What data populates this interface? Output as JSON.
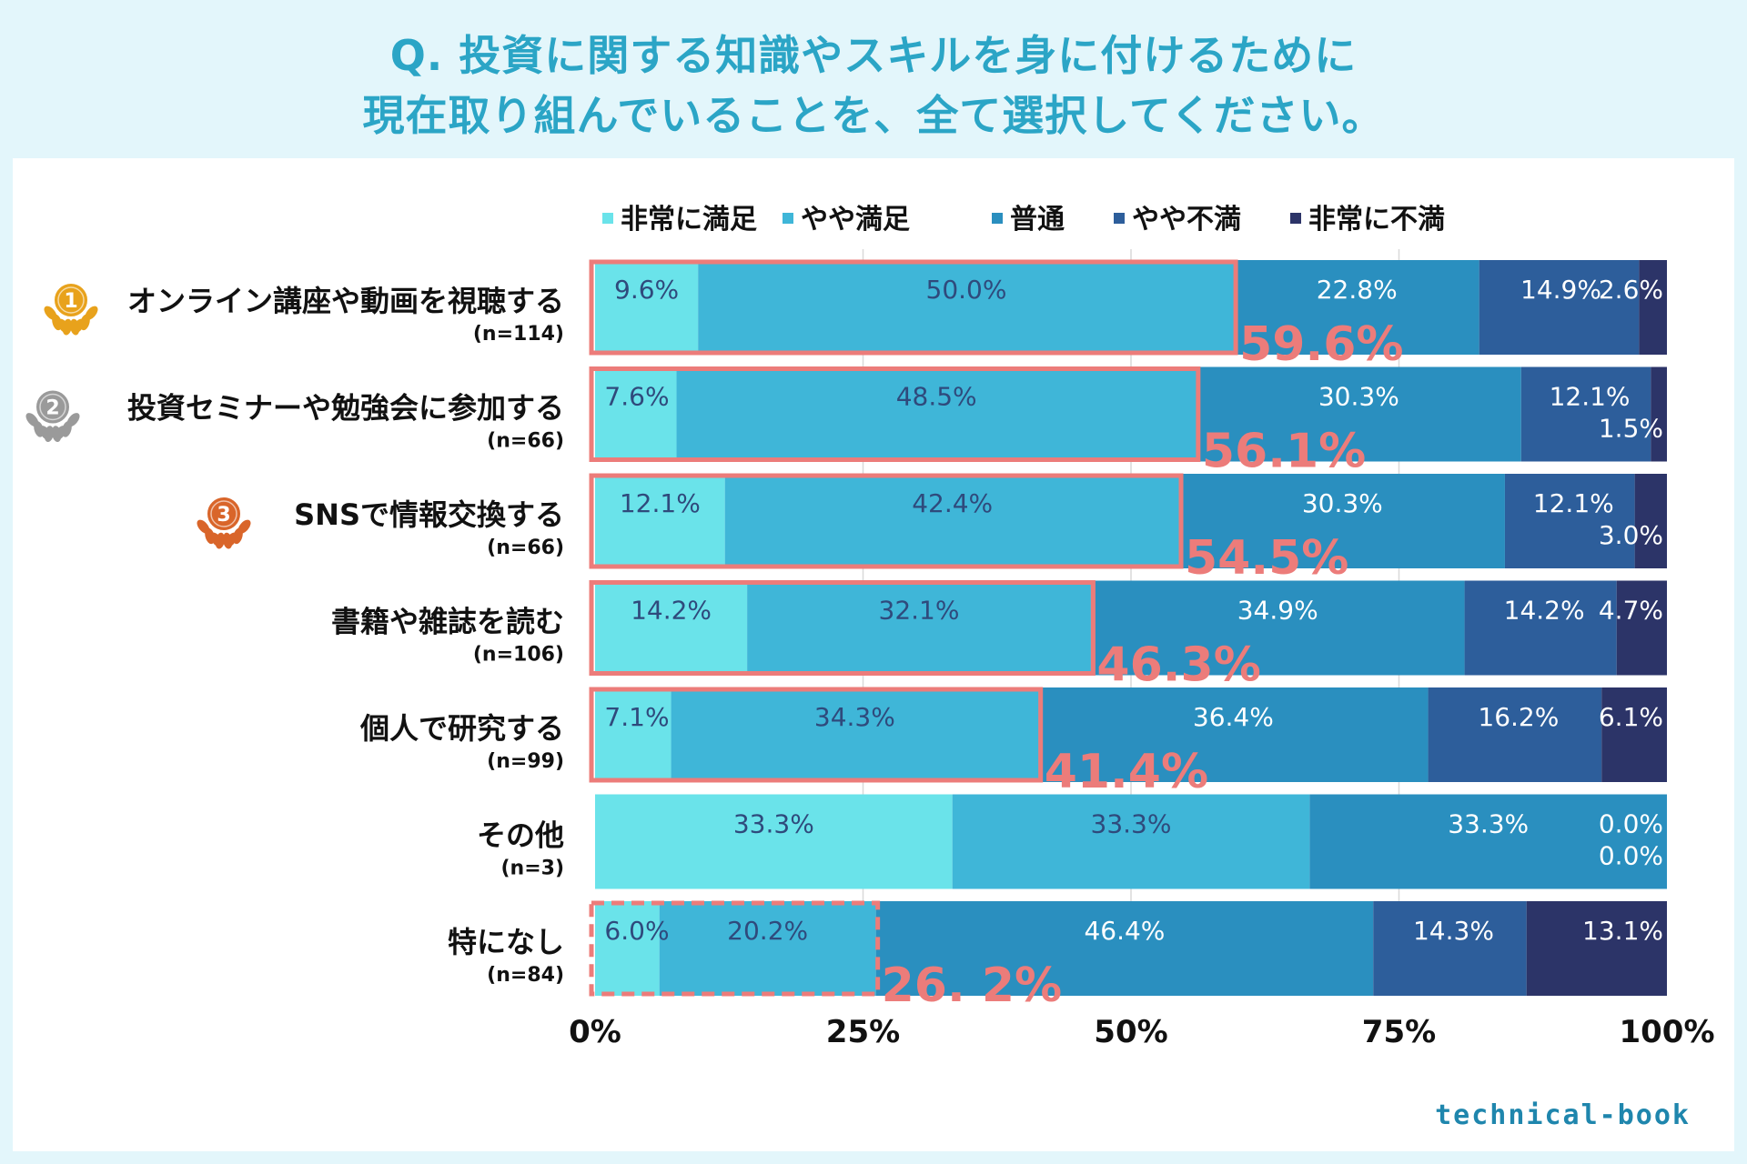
{
  "title": {
    "line1": "Q. 投資に関する知識やスキルを身に付けるために",
    "line2": "現在取り組んでいることを、全て選択してください。"
  },
  "logo_text": "technical-book",
  "colors": {
    "series": [
      "#6ae3ea",
      "#3fb6d8",
      "#2a8fbf",
      "#2d5e9b",
      "#2c3468"
    ],
    "highlight": "#ec7c7a",
    "value_label_dark": "#2f4a7c",
    "value_label_light": "#ffffff",
    "text": "#111111",
    "gold": "#e8a21c",
    "silver": "#9a9a9a",
    "bronze": "#d9652a"
  },
  "chart_data": {
    "type": "bar",
    "orientation": "horizontal-stacked-100",
    "legend": {
      "placement": "top",
      "entries": [
        "非常に満足",
        "やや満足",
        "普通",
        "やや不満",
        "非常に不満"
      ]
    },
    "series": [
      {
        "name": "非常に満足",
        "values": [
          9.6,
          7.6,
          12.1,
          14.2,
          7.1,
          33.3,
          6.0
        ]
      },
      {
        "name": "やや満足",
        "values": [
          50.0,
          48.5,
          42.4,
          32.1,
          34.3,
          33.3,
          20.2
        ]
      },
      {
        "name": "普通",
        "values": [
          22.8,
          30.3,
          30.3,
          34.9,
          36.4,
          33.3,
          46.4
        ]
      },
      {
        "name": "やや不満",
        "values": [
          14.9,
          12.1,
          12.1,
          14.2,
          16.2,
          0.0,
          14.3
        ]
      },
      {
        "name": "非常に不満",
        "values": [
          2.6,
          1.5,
          3.0,
          4.7,
          6.1,
          0.0,
          13.1
        ]
      }
    ],
    "categories": [
      {
        "label": "オンライン講座や動画を視聴する",
        "n": "(n=114)",
        "rank": "1",
        "highlight": "59.6%",
        "highlight_value": 59.6,
        "dashed": false
      },
      {
        "label": "投資セミナーや勉強会に参加する",
        "n": "(n=66)",
        "rank": "2",
        "highlight": "56.1%",
        "highlight_value": 56.1,
        "dashed": false
      },
      {
        "label": "SNSで情報交換する",
        "n": "(n=66)",
        "rank": "3",
        "highlight": "54.5%",
        "highlight_value": 54.5,
        "dashed": false
      },
      {
        "label": "書籍や雑誌を読む",
        "n": "(n=106)",
        "rank": "",
        "highlight": "46.3%",
        "highlight_value": 46.3,
        "dashed": false
      },
      {
        "label": "個人で研究する",
        "n": "(n=99)",
        "rank": "",
        "highlight": "41.4%",
        "highlight_value": 41.4,
        "dashed": false
      },
      {
        "label": "その他",
        "n": "(n=3)",
        "rank": "",
        "highlight": "",
        "highlight_value": 0,
        "dashed": false
      },
      {
        "label": "特になし",
        "n": "(n=84)",
        "rank": "",
        "highlight": "26. 2%",
        "highlight_value": 26.2,
        "dashed": true
      }
    ],
    "labels": [
      [
        "9.6%",
        "50.0%",
        "22.8%",
        "14.9%",
        "2.6%"
      ],
      [
        "7.6%",
        "48.5%",
        "30.3%",
        "12.1%",
        "1.5%"
      ],
      [
        "12.1%",
        "42.4%",
        "30.3%",
        "12.1%",
        "3.0%"
      ],
      [
        "14.2%",
        "32.1%",
        "34.9%",
        "14.2%",
        "4.7%"
      ],
      [
        "7.1%",
        "34.3%",
        "36.4%",
        "16.2%",
        "6.1%"
      ],
      [
        "33.3%",
        "33.3%",
        "33.3%",
        "0.0%",
        "0.0%"
      ],
      [
        "6.0%",
        "20.2%",
        "46.4%",
        "14.3%",
        "13.1%"
      ]
    ],
    "xaxis": {
      "ticks": [
        0,
        25,
        50,
        75,
        100
      ],
      "tick_labels": [
        "0%",
        "25%",
        "50%",
        "75%",
        "100%"
      ],
      "range": [
        0,
        100
      ]
    },
    "gridlines": true
  }
}
